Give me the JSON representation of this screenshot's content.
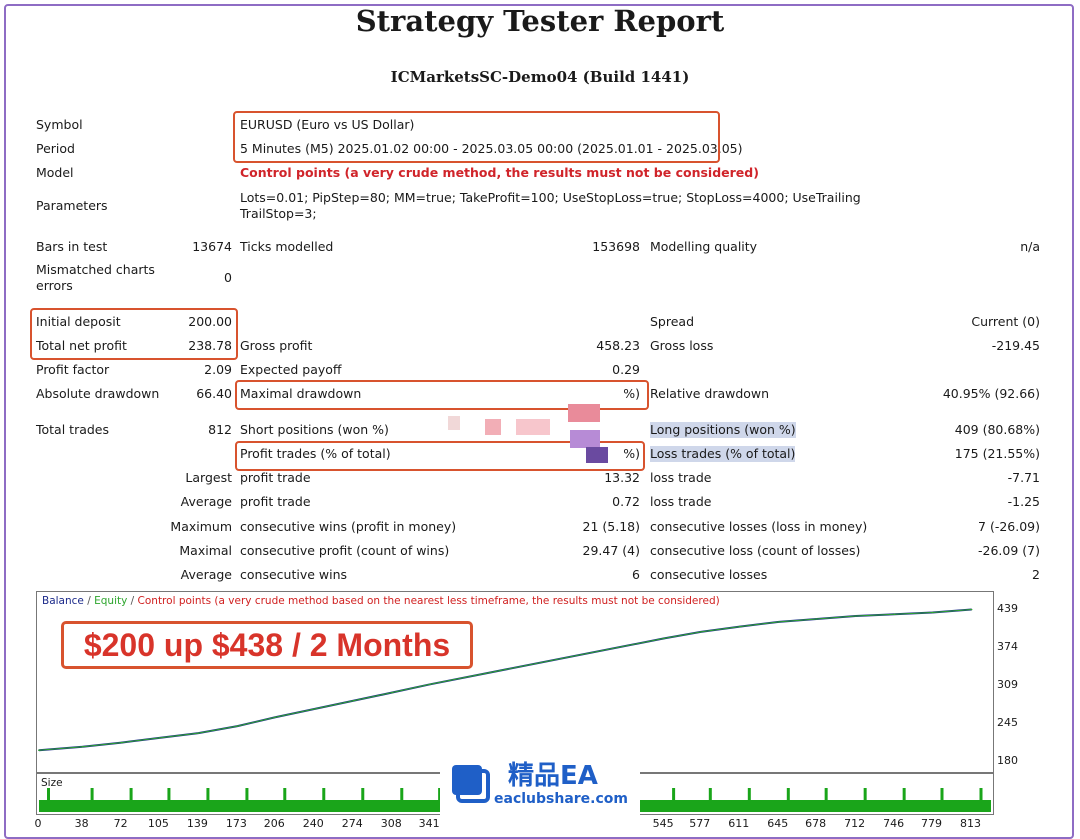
{
  "report": {
    "title": "Strategy Tester Report",
    "server": "ICMarketsSC-Demo04 (Build 1441)"
  },
  "settings": {
    "symbol_label": "Symbol",
    "symbol_value": "EURUSD (Euro vs US Dollar)",
    "period_label": "Period",
    "period_value": "5 Minutes (M5) 2025.01.02 00:00 - 2025.03.05 00:00 (2025.01.01 - 2025.03.05)",
    "model_label": "Model",
    "model_value": "Control points (a very crude method, the results must not be considered)",
    "parameters_label": "Parameters",
    "parameters_line1": "Lots=0.01; PipStep=80; MM=true; TakeProfit=100; UseStopLoss=true; StopLoss=4000; UseTrailingStop=t",
    "parameters_line2": "TrailStop=3;"
  },
  "stats": {
    "bars_label": "Bars in test",
    "bars_value": "13674",
    "ticks_label": "Ticks modelled",
    "ticks_value": "153698",
    "quality_label": "Modelling quality",
    "quality_value": "n/a",
    "mismatch_label_1": "Mismatched charts",
    "mismatch_label_2": "errors",
    "mismatch_value": "0",
    "initial_label": "Initial deposit",
    "initial_value": "200.00",
    "spread_label": "Spread",
    "spread_value": "Current (0)",
    "net_label": "Total net profit",
    "net_value": "238.78",
    "gross_profit_label": "Gross profit",
    "gross_profit_value": "458.23",
    "gross_loss_label": "Gross loss",
    "gross_loss_value": "-219.45",
    "pf_label": "Profit factor",
    "pf_value": "2.09",
    "payoff_label": "Expected payoff",
    "payoff_value": "0.29",
    "abs_dd_label": "Absolute drawdown",
    "abs_dd_value": "66.40",
    "max_dd_label": "Maximal drawdown",
    "max_dd_value": "%)",
    "rel_dd_label": "Relative drawdown",
    "rel_dd_value": "40.95% (92.66)",
    "trades_label": "Total trades",
    "trades_value": "812",
    "short_label": "Short positions (won %)",
    "long_label": "Long positions (won %)",
    "long_value": "409 (80.68%)",
    "profit_trades_label": "Profit trades (% of total)",
    "profit_trades_value": "%)",
    "loss_trades_label": "Loss trades (% of total)",
    "loss_trades_value": "175 (21.55%)"
  },
  "rows": [
    {
      "prefix": "Largest",
      "left_label": "profit trade",
      "left_value": "13.32",
      "right_label": "loss trade",
      "right_value": "-7.71"
    },
    {
      "prefix": "Average",
      "left_label": "profit trade",
      "left_value": "0.72",
      "right_label": "loss trade",
      "right_value": "-1.25"
    },
    {
      "prefix": "Maximum",
      "left_label": "consecutive wins (profit in money)",
      "left_value": "21 (5.18)",
      "right_label": "consecutive losses (loss in money)",
      "right_value": "7 (-26.09)"
    },
    {
      "prefix": "Maximal",
      "left_label": "consecutive profit (count of wins)",
      "left_value": "29.47 (4)",
      "right_label": "consecutive loss (count of losses)",
      "right_value": "-26.09 (7)"
    },
    {
      "prefix": "Average",
      "left_label": "consecutive wins",
      "left_value": "6",
      "right_label": "consecutive losses",
      "right_value": "2"
    }
  ],
  "chart": {
    "legend_balance": "Balance",
    "legend_sep": " / ",
    "legend_equity": "Equity",
    "legend_control": "Control points (a very crude method based on the nearest less timeframe, the results must not be considered)",
    "promo": "$200 up $438 / 2 Months",
    "size_label": "Size",
    "colors": {
      "balance": "#1c2a8a",
      "equity": "#2ea62e",
      "control": "#d02020",
      "size_bars": "#1aa51a"
    }
  },
  "chart_data": {
    "type": "line",
    "x": [
      0,
      38,
      72,
      105,
      139,
      173,
      206,
      240,
      274,
      308,
      341,
      545,
      577,
      611,
      645,
      678,
      712,
      746,
      779,
      813
    ],
    "series": [
      {
        "name": "Balance",
        "values": [
          200,
          206,
          213,
          221,
          229,
          241,
          256,
          270,
          284,
          298,
          312,
          390,
          401,
          410,
          418,
          423,
          428,
          431,
          434,
          439
        ]
      },
      {
        "name": "Equity",
        "values": [
          200,
          206,
          213,
          221,
          229,
          241,
          256,
          270,
          284,
          298,
          312,
          390,
          401,
          410,
          418,
          423,
          428,
          431,
          434,
          439
        ]
      }
    ],
    "y_ticks": [
      "439",
      "374",
      "309",
      "245",
      "180"
    ],
    "x_ticks": [
      "0",
      "38",
      "72",
      "105",
      "139",
      "173",
      "206",
      "240",
      "274",
      "308",
      "341",
      "545",
      "577",
      "611",
      "645",
      "678",
      "712",
      "746",
      "779",
      "813"
    ],
    "ylim": [
      180,
      445
    ],
    "xlim": [
      0,
      830
    ]
  },
  "watermark": {
    "name": "精品EA",
    "url": "eaclubshare.com"
  }
}
